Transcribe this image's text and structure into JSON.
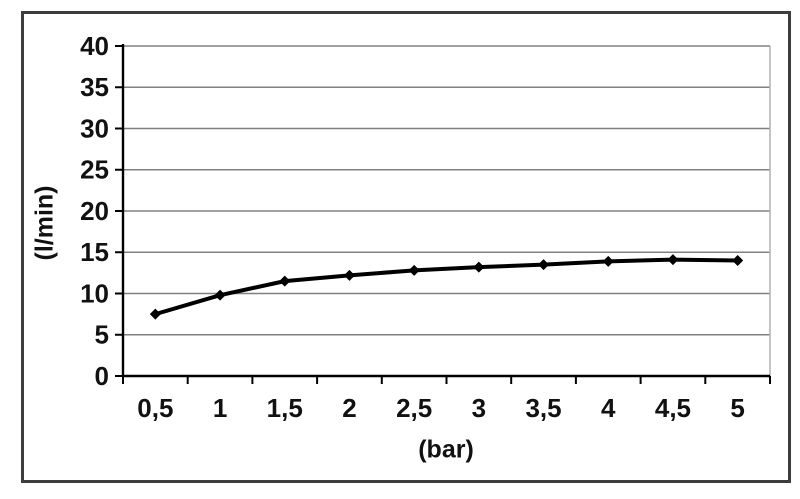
{
  "chart_data": {
    "type": "line",
    "title": "",
    "xlabel": "(bar)",
    "ylabel": "(l/min)",
    "categories": [
      "0,5",
      "1",
      "1,5",
      "2",
      "2,5",
      "3",
      "3,5",
      "4",
      "4,5",
      "5"
    ],
    "values": [
      7.5,
      9.8,
      11.5,
      12.2,
      12.8,
      13.2,
      13.5,
      13.9,
      14.1,
      14.0
    ],
    "ylim": [
      0,
      40
    ],
    "y_tick_step": 5,
    "y_tick_labels": [
      "0",
      "5",
      "10",
      "15",
      "20",
      "25",
      "30",
      "35",
      "40"
    ],
    "grid": true,
    "legend": "none",
    "marker": "diamond",
    "colors": {
      "series_line": "#000000",
      "marker_fill": "#000000",
      "gridline": "#808080",
      "axis_line": "#000000",
      "plot_border": "#b0b0b0",
      "frame_border": "#3d3d3d",
      "label_text": "#111111",
      "background": "#ffffff"
    }
  }
}
